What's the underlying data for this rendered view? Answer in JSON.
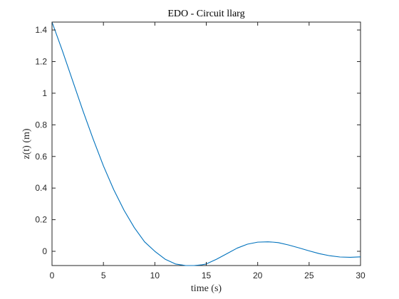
{
  "chart_data": {
    "type": "line",
    "title": "EDO - Circuit llarg",
    "xlabel": "time (s)",
    "ylabel": "z(t) (m)",
    "xlim": [
      0,
      30
    ],
    "ylim": [
      -0.09,
      1.45
    ],
    "xticks": [
      0,
      5,
      10,
      15,
      20,
      25,
      30
    ],
    "yticks": [
      0,
      0.2,
      0.4,
      0.6,
      0.8,
      1,
      1.2,
      1.4
    ],
    "ytick_labels": [
      "0",
      "0.2",
      "0.4",
      "0.6",
      "0.8",
      "1",
      "1.2",
      "1.4"
    ],
    "grid": false,
    "series": [
      {
        "color": "#0072BD",
        "x": [
          0,
          1,
          2,
          3,
          4,
          5,
          6,
          7,
          8,
          9,
          10,
          11,
          12,
          13,
          13.8,
          14.5,
          15,
          16,
          17,
          18,
          19,
          20,
          21,
          21.5,
          22,
          23,
          24,
          25,
          26,
          27,
          28,
          29,
          30
        ],
        "y": [
          1.45,
          1.27,
          1.08,
          0.89,
          0.71,
          0.54,
          0.39,
          0.26,
          0.15,
          0.06,
          0.0,
          -0.05,
          -0.08,
          -0.09,
          -0.09,
          -0.086,
          -0.08,
          -0.05,
          -0.015,
          0.02,
          0.045,
          0.058,
          0.06,
          0.058,
          0.055,
          0.04,
          0.022,
          0.003,
          -0.015,
          -0.028,
          -0.036,
          -0.038,
          -0.035
        ]
      }
    ]
  }
}
